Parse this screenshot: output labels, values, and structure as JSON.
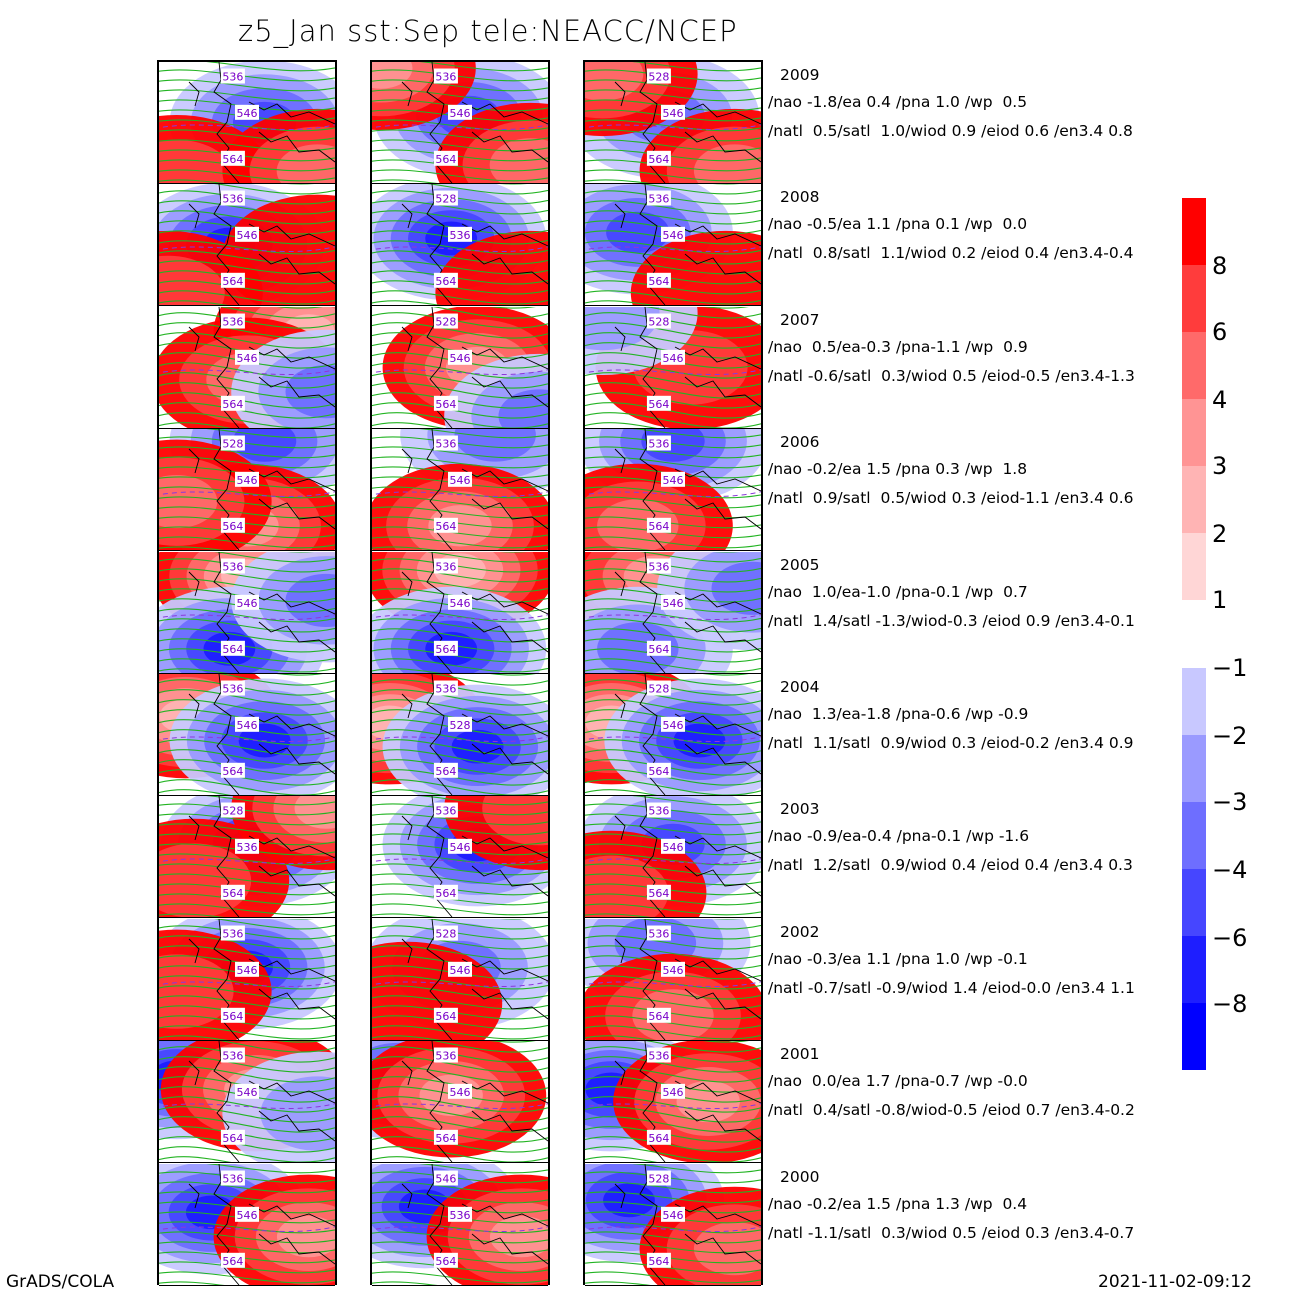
{
  "title": "z5_Jan  sst:Sep  tele:NEACC/NCEP",
  "footer": {
    "left": "GrADS/COLA",
    "right": "2021-11-02-09:12"
  },
  "colors": {
    "pos": [
      "#ffd6d6",
      "#ffb4b4",
      "#ff9494",
      "#ff6a6a",
      "#ff3c3c",
      "#ff0000"
    ],
    "neg": [
      "#c8c8ff",
      "#9a9aff",
      "#6e6eff",
      "#4646ff",
      "#1e1eff",
      "#0000ff"
    ],
    "contour": "#22b422",
    "contour_label": "#7a00c8",
    "coast": "#000000"
  },
  "colorbar": {
    "pos_labels": [
      "8",
      "6",
      "4",
      "3",
      "2",
      "1"
    ],
    "neg_labels": [
      "-1",
      "-2",
      "-3",
      "-4",
      "-6",
      "-8"
    ]
  },
  "years": [
    {
      "year": "2009",
      "line1": "/nao -1.8/ea 0.4 /pna 1.0 /wp  0.5",
      "line2": "/natl  0.5/satl  1.0/wiod 0.9 /eiod 0.6 /en3.4 0.8",
      "labels": [
        [
          "536",
          "546",
          "564"
        ],
        [
          "536",
          "546",
          "564"
        ],
        [
          "528",
          "546",
          "564"
        ]
      ]
    },
    {
      "year": "2008",
      "line1": "/nao -0.5/ea 1.1 /pna 0.1 /wp  0.0",
      "line2": "/natl  0.8/satl  1.1/wiod 0.2 /eiod 0.4 /en3.4-0.4",
      "labels": [
        [
          "536",
          "546",
          "564"
        ],
        [
          "528",
          "536",
          "564"
        ],
        [
          "536",
          "546",
          "564"
        ]
      ]
    },
    {
      "year": "2007",
      "line1": "/nao  0.5/ea-0.3 /pna-1.1 /wp  0.9",
      "line2": "/natl -0.6/satl  0.3/wiod 0.5 /eiod-0.5 /en3.4-1.3",
      "labels": [
        [
          "536",
          "546",
          "564"
        ],
        [
          "528",
          "546",
          "564"
        ],
        [
          "528",
          "546",
          "564"
        ]
      ]
    },
    {
      "year": "2006",
      "line1": "/nao -0.2/ea 1.5 /pna 0.3 /wp  1.8",
      "line2": "/natl  0.9/satl  0.5/wiod 0.3 /eiod-1.1 /en3.4 0.6",
      "labels": [
        [
          "528",
          "546",
          "564"
        ],
        [
          "536",
          "546",
          "564"
        ],
        [
          "536",
          "546",
          "564"
        ]
      ]
    },
    {
      "year": "2005",
      "line1": "/nao  1.0/ea-1.0 /pna-0.1 /wp  0.7",
      "line2": "/natl  1.4/satl -1.3/wiod-0.3 /eiod 0.9 /en3.4-0.1",
      "labels": [
        [
          "536",
          "546",
          "564"
        ],
        [
          "536",
          "546",
          "564"
        ],
        [
          "536",
          "546",
          "564"
        ]
      ]
    },
    {
      "year": "2004",
      "line1": "/nao  1.3/ea-1.8 /pna-0.6 /wp -0.9",
      "line2": "/natl  1.1/satl  0.9/wiod 0.3 /eiod-0.2 /en3.4 0.9",
      "labels": [
        [
          "536",
          "546",
          "564"
        ],
        [
          "536",
          "528",
          "564"
        ],
        [
          "528",
          "546",
          "564"
        ]
      ]
    },
    {
      "year": "2003",
      "line1": "/nao -0.9/ea-0.4 /pna-0.1 /wp -1.6",
      "line2": "/natl  1.2/satl  0.9/wiod 0.4 /eiod 0.4 /en3.4 0.3",
      "labels": [
        [
          "528",
          "536",
          "564"
        ],
        [
          "536",
          "546",
          "564"
        ],
        [
          "536",
          "546",
          "564"
        ]
      ]
    },
    {
      "year": "2002",
      "line1": "/nao -0.3/ea 1.1 /pna 1.0 /wp -0.1",
      "line2": "/natl -0.7/satl -0.9/wiod 1.4 /eiod-0.0 /en3.4 1.1",
      "labels": [
        [
          "536",
          "546",
          "564"
        ],
        [
          "528",
          "546",
          "564"
        ],
        [
          "536",
          "546",
          "564"
        ]
      ]
    },
    {
      "year": "2001",
      "line1": "/nao  0.0/ea 1.7 /pna-0.7 /wp -0.0",
      "line2": "/natl  0.4/satl -0.8/wiod-0.5 /eiod 0.7 /en3.4-0.2",
      "labels": [
        [
          "536",
          "546",
          "564"
        ],
        [
          "536",
          "546",
          "564"
        ],
        [
          "536",
          "546",
          "564"
        ]
      ]
    },
    {
      "year": "2000",
      "line1": "/nao -0.2/ea 1.5 /pna 1.3 /wp  0.4",
      "line2": "/natl -1.1/satl  0.3/wiod 0.5 /eiod 0.3 /en3.4-0.7",
      "labels": [
        [
          "536",
          "546",
          "564"
        ],
        [
          "546",
          "536",
          "564"
        ],
        [
          "528",
          "546",
          "564"
        ]
      ]
    }
  ],
  "anomaly_pattern": [
    [
      [
        [
          "b",
          0.6,
          0.5,
          4
        ],
        [
          "r",
          0.1,
          0.95,
          2
        ],
        [
          "r",
          0.9,
          0.9,
          3
        ]
      ],
      [
        [
          "b",
          0.55,
          0.45,
          4
        ],
        [
          "r",
          0.05,
          0.05,
          4
        ],
        [
          "r",
          0.9,
          0.85,
          3
        ]
      ],
      [
        [
          "b",
          0.45,
          0.45,
          3
        ],
        [
          "r",
          0.1,
          0.1,
          3
        ],
        [
          "r",
          0.85,
          0.9,
          3
        ]
      ]
    ],
    [
      [
        [
          "b",
          0.4,
          0.5,
          5
        ],
        [
          "r",
          0.05,
          0.9,
          2
        ],
        [
          "r",
          0.9,
          0.6,
          1
        ]
      ],
      [
        [
          "b",
          0.45,
          0.45,
          5
        ],
        [
          "r",
          0.9,
          0.9,
          1
        ]
      ],
      [
        [
          "b",
          0.3,
          0.4,
          4
        ],
        [
          "r",
          0.8,
          0.9,
          1
        ]
      ]
    ],
    [
      [
        [
          "r",
          0.85,
          0.2,
          5
        ],
        [
          "r",
          0.5,
          0.6,
          3
        ],
        [
          "b",
          0.95,
          0.7,
          3
        ]
      ],
      [
        [
          "r",
          0.6,
          0.5,
          4
        ],
        [
          "b",
          0.95,
          0.9,
          3
        ]
      ],
      [
        [
          "r",
          0.6,
          0.5,
          2
        ],
        [
          "b",
          0.1,
          0.05,
          2
        ]
      ]
    ],
    [
      [
        [
          "b",
          0.6,
          0.1,
          4
        ],
        [
          "r",
          0.5,
          0.8,
          4
        ],
        [
          "r",
          0.1,
          0.6,
          3
        ]
      ],
      [
        [
          "b",
          0.7,
          0.05,
          3
        ],
        [
          "r",
          0.5,
          0.8,
          4
        ]
      ],
      [
        [
          "b",
          0.5,
          0.1,
          4
        ],
        [
          "r",
          0.3,
          0.8,
          3
        ]
      ]
    ],
    [
      [
        [
          "r",
          0.5,
          0.2,
          5
        ],
        [
          "b",
          0.4,
          0.8,
          5
        ],
        [
          "b",
          0.95,
          0.4,
          3
        ]
      ],
      [
        [
          "r",
          0.5,
          0.15,
          5
        ],
        [
          "b",
          0.45,
          0.8,
          5
        ]
      ],
      [
        [
          "r",
          0.4,
          0.2,
          4
        ],
        [
          "b",
          0.3,
          0.8,
          3
        ],
        [
          "b",
          0.95,
          0.3,
          3
        ]
      ]
    ],
    [
      [
        [
          "r",
          0.15,
          0.35,
          5
        ],
        [
          "b",
          0.6,
          0.55,
          5
        ]
      ],
      [
        [
          "r",
          0.1,
          0.4,
          5
        ],
        [
          "b",
          0.6,
          0.6,
          5
        ]
      ],
      [
        [
          "r",
          0.15,
          0.4,
          5
        ],
        [
          "b",
          0.65,
          0.55,
          5
        ]
      ]
    ],
    [
      [
        [
          "b",
          0.55,
          0.4,
          5
        ],
        [
          "r",
          0.2,
          0.7,
          2
        ],
        [
          "r",
          0.95,
          0.1,
          4
        ]
      ],
      [
        [
          "b",
          0.6,
          0.4,
          5
        ],
        [
          "r",
          0.95,
          0.1,
          2
        ]
      ],
      [
        [
          "b",
          0.5,
          0.4,
          4
        ],
        [
          "r",
          0.15,
          0.8,
          2
        ]
      ]
    ],
    [
      [
        [
          "b",
          0.5,
          0.4,
          5
        ],
        [
          "r",
          0.1,
          0.6,
          2
        ]
      ],
      [
        [
          "b",
          0.5,
          0.4,
          3
        ],
        [
          "r",
          0.2,
          0.7,
          1
        ]
      ],
      [
        [
          "b",
          0.4,
          0.2,
          3
        ],
        [
          "r",
          0.5,
          0.8,
          3
        ]
      ]
    ],
    [
      [
        [
          "b",
          0.1,
          0.3,
          5
        ],
        [
          "r",
          0.55,
          0.4,
          4
        ],
        [
          "b",
          0.9,
          0.6,
          2
        ]
      ],
      [
        [
          "b",
          0.15,
          0.3,
          4
        ],
        [
          "r",
          0.45,
          0.45,
          4
        ]
      ],
      [
        [
          "b",
          0.15,
          0.4,
          5
        ],
        [
          "r",
          0.7,
          0.5,
          4
        ]
      ]
    ],
    [
      [
        [
          "b",
          0.3,
          0.4,
          5
        ],
        [
          "r",
          0.85,
          0.6,
          4
        ]
      ],
      [
        [
          "b",
          0.3,
          0.35,
          5
        ],
        [
          "r",
          0.85,
          0.6,
          4
        ]
      ],
      [
        [
          "b",
          0.25,
          0.3,
          5
        ],
        [
          "r",
          0.85,
          0.7,
          3
        ]
      ]
    ]
  ]
}
